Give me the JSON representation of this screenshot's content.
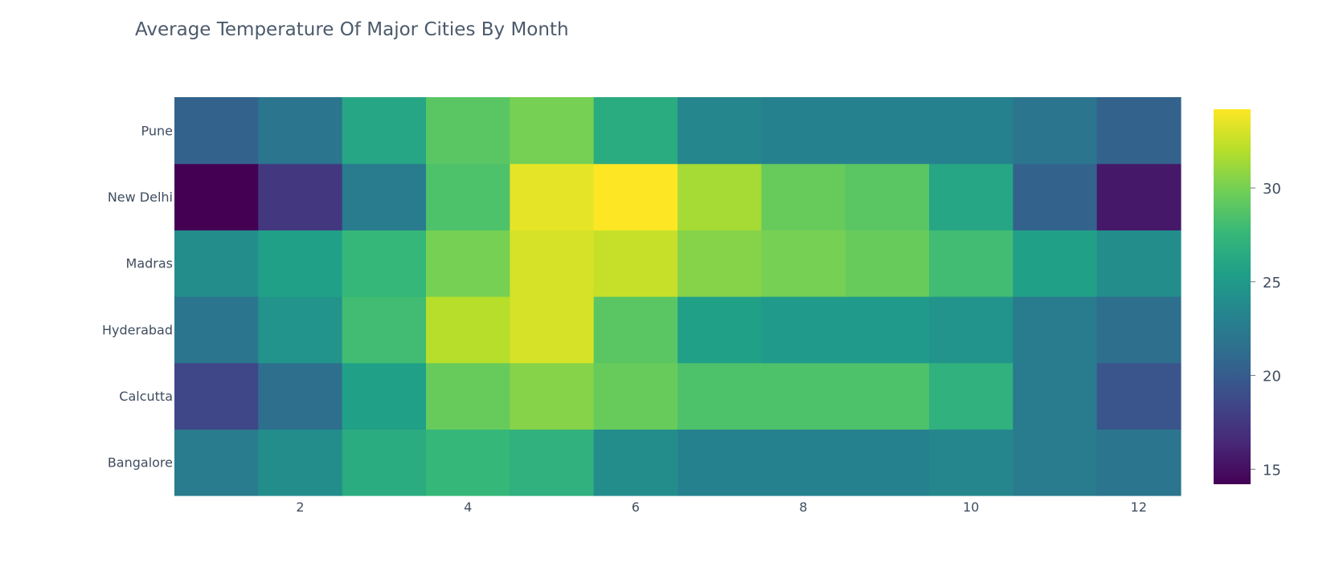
{
  "chart_data": {
    "type": "heatmap",
    "title": "Average Temperature Of Major Cities By Month",
    "x": [
      1,
      2,
      3,
      4,
      5,
      6,
      7,
      8,
      9,
      10,
      11,
      12
    ],
    "x_tick_labels": [
      "2",
      "4",
      "6",
      "8",
      "10",
      "12"
    ],
    "x_tick_values": [
      2,
      4,
      6,
      8,
      10,
      12
    ],
    "y": [
      "Bangalore",
      "Calcutta",
      "Hyderabad",
      "Madras",
      "New Delhi",
      "Pune"
    ],
    "z": [
      [
        22.5,
        24.0,
        26.5,
        27.5,
        27.0,
        24.0,
        23.0,
        23.0,
        23.0,
        23.5,
        22.5,
        22.0
      ],
      [
        18.5,
        21.5,
        25.5,
        29.5,
        30.5,
        29.5,
        28.5,
        28.5,
        28.5,
        27.0,
        22.5,
        19.5
      ],
      [
        22.0,
        24.5,
        28.0,
        32.0,
        33.0,
        29.0,
        25.5,
        25.0,
        25.0,
        24.5,
        22.5,
        21.5
      ],
      [
        24.0,
        25.5,
        27.5,
        30.0,
        33.0,
        32.5,
        30.5,
        30.0,
        29.5,
        28.0,
        25.5,
        24.0
      ],
      [
        14.2,
        17.5,
        22.5,
        28.5,
        33.5,
        34.2,
        31.5,
        29.5,
        29.0,
        26.0,
        20.5,
        15.5
      ],
      [
        20.5,
        22.0,
        26.0,
        29.0,
        30.0,
        26.5,
        23.5,
        23.0,
        23.0,
        23.0,
        22.0,
        20.5
      ]
    ],
    "zlim": [
      14.2,
      34.2
    ],
    "colorscale": "Viridis",
    "colorbar": {
      "tick_values": [
        15,
        20,
        25,
        30
      ],
      "tick_labels": [
        "15",
        "20",
        "25",
        "30"
      ]
    },
    "xlabel": "",
    "ylabel": "",
    "grid": false,
    "legend": "colorbar-right"
  }
}
